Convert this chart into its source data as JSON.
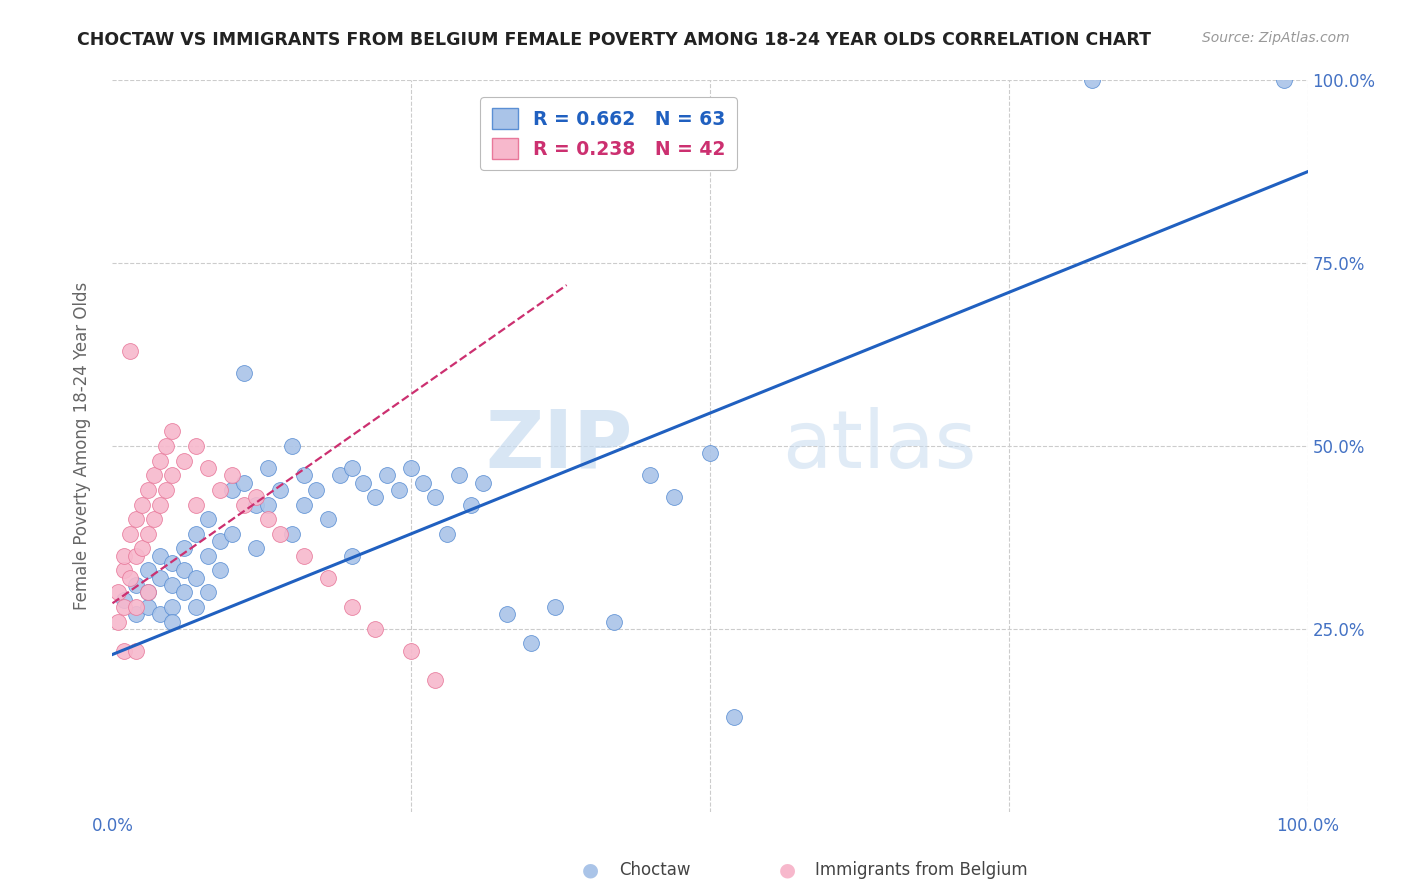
{
  "title": "CHOCTAW VS IMMIGRANTS FROM BELGIUM FEMALE POVERTY AMONG 18-24 YEAR OLDS CORRELATION CHART",
  "source": "Source: ZipAtlas.com",
  "ylabel": "Female Poverty Among 18-24 Year Olds",
  "xlim": [
    0,
    1.0
  ],
  "ylim": [
    0,
    1.0
  ],
  "xticks": [
    0.0,
    0.25,
    0.5,
    0.75,
    1.0
  ],
  "yticks": [
    0.0,
    0.25,
    0.5,
    0.75,
    1.0
  ],
  "xticklabels": [
    "0.0%",
    "",
    "",
    "",
    "100.0%"
  ],
  "right_yticklabels": [
    "25.0%",
    "50.0%",
    "75.0%",
    "100.0%"
  ],
  "tick_color": "#4472c4",
  "grid_color": "#cccccc",
  "watermark_zip": "ZIP",
  "watermark_atlas": "atlas",
  "choctaw_color": "#aac4e8",
  "choctaw_edge": "#5b8fd4",
  "belgium_color": "#f7b8cc",
  "belgium_edge": "#e8789a",
  "choctaw_R": 0.662,
  "choctaw_N": 63,
  "belgium_R": 0.238,
  "belgium_N": 42,
  "choctaw_line_color": "#2060c0",
  "belgium_line_color": "#cc3070",
  "choctaw_line_x": [
    0.0,
    1.0
  ],
  "choctaw_line_y": [
    0.215,
    0.875
  ],
  "belgium_line_x": [
    0.0,
    0.38
  ],
  "belgium_line_y": [
    0.285,
    0.72
  ],
  "choctaw_x": [
    0.01,
    0.02,
    0.02,
    0.03,
    0.03,
    0.03,
    0.04,
    0.04,
    0.04,
    0.05,
    0.05,
    0.05,
    0.05,
    0.06,
    0.06,
    0.06,
    0.07,
    0.07,
    0.07,
    0.08,
    0.08,
    0.08,
    0.09,
    0.09,
    0.1,
    0.1,
    0.11,
    0.11,
    0.12,
    0.12,
    0.13,
    0.13,
    0.14,
    0.15,
    0.15,
    0.16,
    0.16,
    0.17,
    0.18,
    0.19,
    0.2,
    0.2,
    0.21,
    0.22,
    0.23,
    0.24,
    0.25,
    0.26,
    0.27,
    0.28,
    0.29,
    0.3,
    0.31,
    0.33,
    0.35,
    0.37,
    0.42,
    0.45,
    0.47,
    0.5,
    0.52,
    0.82,
    0.98
  ],
  "choctaw_y": [
    0.29,
    0.31,
    0.27,
    0.33,
    0.28,
    0.3,
    0.32,
    0.27,
    0.35,
    0.31,
    0.28,
    0.34,
    0.26,
    0.33,
    0.3,
    0.36,
    0.32,
    0.28,
    0.38,
    0.35,
    0.3,
    0.4,
    0.37,
    0.33,
    0.44,
    0.38,
    0.6,
    0.45,
    0.42,
    0.36,
    0.47,
    0.42,
    0.44,
    0.5,
    0.38,
    0.46,
    0.42,
    0.44,
    0.4,
    0.46,
    0.47,
    0.35,
    0.45,
    0.43,
    0.46,
    0.44,
    0.47,
    0.45,
    0.43,
    0.38,
    0.46,
    0.42,
    0.45,
    0.27,
    0.23,
    0.28,
    0.26,
    0.46,
    0.43,
    0.49,
    0.13,
    1.0,
    1.0
  ],
  "belgium_x": [
    0.005,
    0.005,
    0.01,
    0.01,
    0.01,
    0.01,
    0.015,
    0.015,
    0.02,
    0.02,
    0.02,
    0.02,
    0.025,
    0.025,
    0.03,
    0.03,
    0.03,
    0.035,
    0.035,
    0.04,
    0.04,
    0.045,
    0.045,
    0.05,
    0.05,
    0.06,
    0.07,
    0.07,
    0.08,
    0.09,
    0.1,
    0.11,
    0.12,
    0.13,
    0.14,
    0.16,
    0.18,
    0.2,
    0.22,
    0.25,
    0.27,
    0.015
  ],
  "belgium_y": [
    0.3,
    0.26,
    0.33,
    0.28,
    0.35,
    0.22,
    0.38,
    0.32,
    0.4,
    0.35,
    0.28,
    0.22,
    0.42,
    0.36,
    0.44,
    0.38,
    0.3,
    0.46,
    0.4,
    0.48,
    0.42,
    0.5,
    0.44,
    0.52,
    0.46,
    0.48,
    0.5,
    0.42,
    0.47,
    0.44,
    0.46,
    0.42,
    0.43,
    0.4,
    0.38,
    0.35,
    0.32,
    0.28,
    0.25,
    0.22,
    0.18,
    0.63
  ]
}
